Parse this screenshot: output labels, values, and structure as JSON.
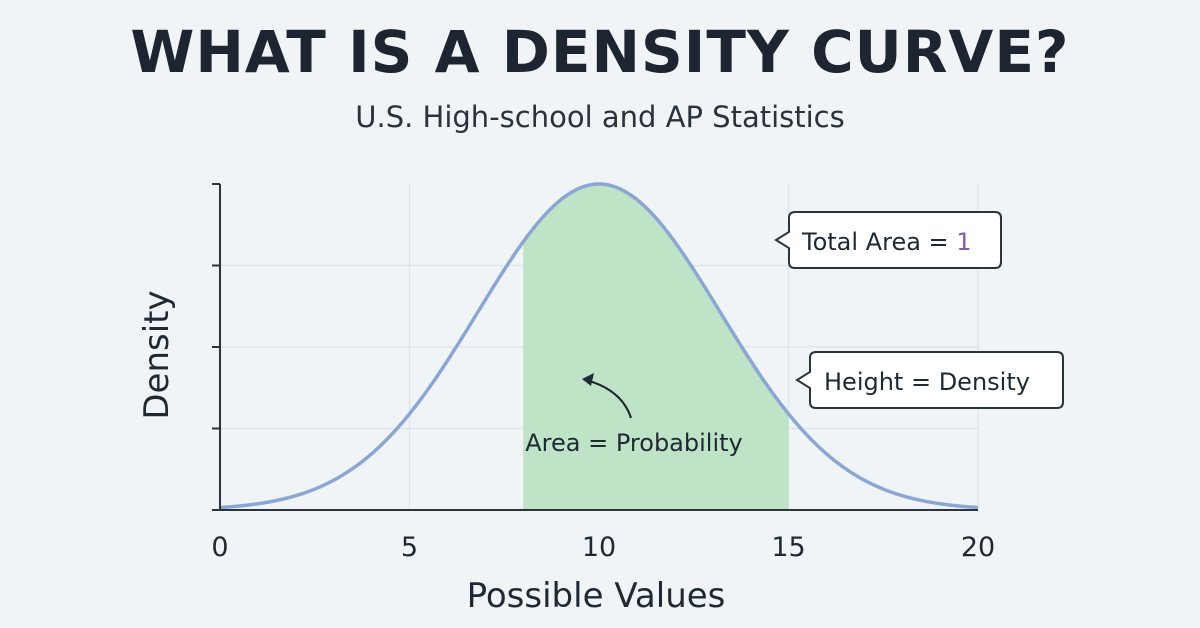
{
  "header": {
    "title": "WHAT IS A DENSITY CURVE?",
    "subtitle": "U.S. High-school and AP Statistics"
  },
  "chart_data": {
    "type": "area",
    "title": "WHAT IS A DENSITY CURVE?",
    "xlabel": "Possible Values",
    "ylabel": "Density",
    "xlim": [
      0,
      20
    ],
    "x_ticks": [
      0,
      5,
      10,
      15,
      20
    ],
    "grid": true,
    "curve": {
      "kind": "normal",
      "mean": 10,
      "sd": 3.2,
      "color": "#8aa7d4"
    },
    "shaded_region": {
      "from": 8,
      "to": 15,
      "color": "#bfe3c6"
    },
    "annotations": {
      "total_area": {
        "prefix": "Total Area = ",
        "value": "1",
        "value_color": "#8a5aa8"
      },
      "height": "Height = Density",
      "area": "Area = Probability"
    }
  }
}
